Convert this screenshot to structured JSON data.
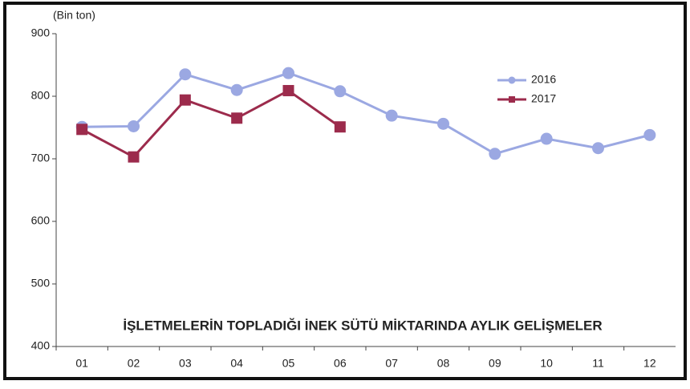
{
  "chart_data": {
    "type": "line",
    "title": "İŞLETMELERİN TOPLADIĞI İNEK SÜTÜ MİKTARINDA AYLIK GELİŞMELER",
    "y_label": "(Bin ton)",
    "categories": [
      "01",
      "02",
      "03",
      "04",
      "05",
      "06",
      "07",
      "08",
      "09",
      "10",
      "11",
      "12"
    ],
    "series": [
      {
        "name": "2016",
        "color": "#9ba8e2",
        "marker": "circle",
        "values": [
          751,
          752,
          835,
          810,
          837,
          808,
          769,
          756,
          708,
          732,
          717,
          738
        ]
      },
      {
        "name": "2017",
        "color": "#9c2b4c",
        "marker": "square",
        "values": [
          747,
          703,
          794,
          765,
          809,
          751,
          null,
          null,
          null,
          null,
          null,
          null
        ]
      }
    ],
    "ylim": [
      400,
      900
    ],
    "yticks": [
      400,
      500,
      600,
      700,
      800,
      900
    ],
    "grid": false,
    "legend": "upper right"
  }
}
